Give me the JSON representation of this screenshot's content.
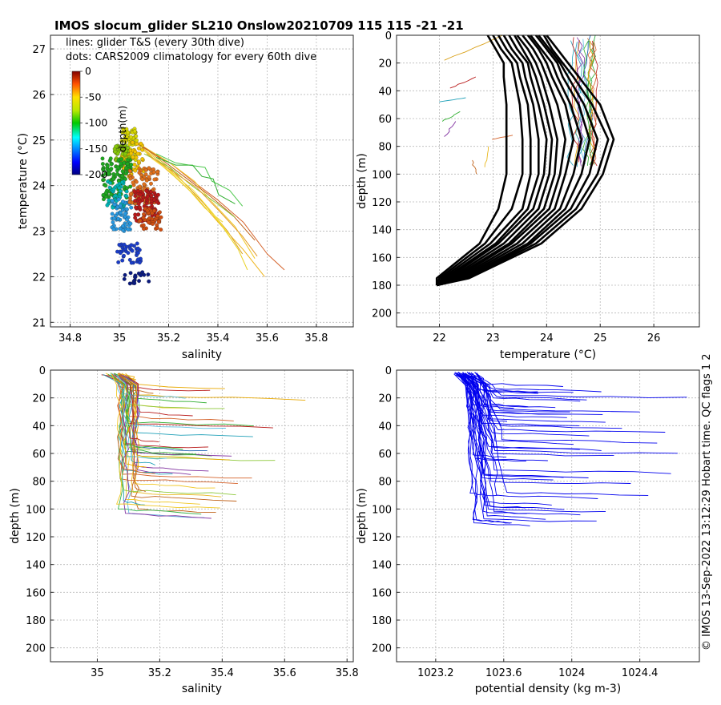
{
  "title": "IMOS slocum_glider SL210 Onslow20210709 115  115  -21  -21",
  "side_text": "© IMOS 13-Sep-2022 13:12:29 Hobart time. QC flags 1  2",
  "chart_data": [
    {
      "id": "ts",
      "type": "scatter",
      "xlabel": "salinity",
      "ylabel": "temperature (°C)",
      "xlim": [
        34.72,
        35.95
      ],
      "ylim": [
        20.9,
        27.3
      ],
      "xticks": [
        "34.8",
        "35",
        "35.2",
        "35.4",
        "35.6",
        "35.8"
      ],
      "yticks": [
        "21",
        "22",
        "23",
        "24",
        "25",
        "26",
        "27"
      ],
      "legend_lines": [
        "lines: glider T&S (every 30th dive)",
        "dots: CARS2009 climatology for every 60th dive"
      ],
      "colorbar": {
        "label": "depth(m)",
        "ticks": [
          "0",
          "-50",
          "-100",
          "-150",
          "-200"
        ],
        "range": [
          -200,
          0
        ]
      },
      "glider_lines": [
        {
          "color": "#d4622a",
          "points": [
            [
              35.06,
              24.95
            ],
            [
              35.12,
              24.78
            ],
            [
              35.2,
              24.5
            ],
            [
              35.3,
              24.1
            ],
            [
              35.4,
              23.7
            ],
            [
              35.5,
              23.2
            ],
            [
              35.6,
              22.5
            ],
            [
              35.67,
              22.15
            ]
          ]
        },
        {
          "color": "#eeb41c",
          "points": [
            [
              35.08,
              24.9
            ],
            [
              35.14,
              24.6
            ],
            [
              35.22,
              24.2
            ],
            [
              35.3,
              23.8
            ],
            [
              35.4,
              23.2
            ],
            [
              35.5,
              22.6
            ],
            [
              35.59,
              22.0
            ]
          ]
        },
        {
          "color": "#e8d020",
          "points": [
            [
              35.1,
              24.8
            ],
            [
              35.18,
              24.45
            ],
            [
              35.26,
              24.05
            ],
            [
              35.34,
              23.65
            ],
            [
              35.42,
              23.1
            ],
            [
              35.48,
              22.6
            ],
            [
              35.52,
              22.15
            ]
          ]
        },
        {
          "color": "#d9a017",
          "points": [
            [
              35.12,
              24.75
            ],
            [
              35.2,
              24.4
            ],
            [
              35.28,
              24.0
            ],
            [
              35.36,
              23.5
            ],
            [
              35.44,
              23.0
            ],
            [
              35.5,
              22.5
            ]
          ]
        },
        {
          "color": "#f0c828",
          "points": [
            [
              35.1,
              24.85
            ],
            [
              35.2,
              24.5
            ],
            [
              35.3,
              24.1
            ],
            [
              35.38,
              23.65
            ],
            [
              35.47,
              23.1
            ],
            [
              35.55,
              22.4
            ]
          ]
        },
        {
          "color": "#c0631a",
          "points": [
            [
              35.07,
              24.95
            ],
            [
              35.16,
              24.6
            ],
            [
              35.26,
              24.2
            ],
            [
              35.36,
              23.8
            ],
            [
              35.46,
              23.35
            ],
            [
              35.55,
              22.8
            ]
          ]
        },
        {
          "color": "#eed83a",
          "points": [
            [
              35.09,
              24.8
            ],
            [
              35.18,
              24.4
            ],
            [
              35.27,
              23.95
            ],
            [
              35.35,
              23.5
            ],
            [
              35.42,
              23.2
            ]
          ]
        },
        {
          "color": "#4cc84c",
          "points": [
            [
              35.15,
              24.7
            ],
            [
              35.23,
              24.5
            ],
            [
              35.28,
              24.45
            ],
            [
              35.35,
              24.4
            ],
            [
              35.38,
              24.1
            ],
            [
              35.45,
              23.9
            ],
            [
              35.5,
              23.55
            ]
          ]
        },
        {
          "color": "#2fae2f",
          "points": [
            [
              35.15,
              24.62
            ],
            [
              35.23,
              24.45
            ],
            [
              35.3,
              24.45
            ],
            [
              35.33,
              24.2
            ],
            [
              35.38,
              24.15
            ],
            [
              35.4,
              23.8
            ],
            [
              35.47,
              23.6
            ]
          ]
        },
        {
          "color": "#8dc83a",
          "points": [
            [
              35.1,
              24.7
            ],
            [
              35.2,
              24.4
            ],
            [
              35.3,
              24.0
            ],
            [
              35.4,
              23.6
            ],
            [
              35.47,
              23.3
            ]
          ]
        },
        {
          "color": "#f7e04a",
          "points": [
            [
              35.13,
              24.6
            ],
            [
              35.22,
              24.25
            ],
            [
              35.3,
              23.9
            ],
            [
              35.38,
              23.4
            ],
            [
              35.45,
              22.9
            ]
          ]
        },
        {
          "color": "#e39b2b",
          "points": [
            [
              35.11,
              24.7
            ],
            [
              35.21,
              24.35
            ],
            [
              35.31,
              23.95
            ],
            [
              35.41,
              23.45
            ],
            [
              35.5,
              22.9
            ],
            [
              35.56,
              22.45
            ]
          ]
        }
      ],
      "climatology_clusters": [
        {
          "color": "#d8d800",
          "s": [
            35.01,
            35.07
          ],
          "t": [
            24.55,
            25.25
          ],
          "n": 60
        },
        {
          "color": "#f2c400",
          "s": [
            35.01,
            35.1
          ],
          "t": [
            24.2,
            24.95
          ],
          "n": 50
        },
        {
          "color": "#88c808",
          "s": [
            34.98,
            35.04
          ],
          "t": [
            24.4,
            24.9
          ],
          "n": 50
        },
        {
          "color": "#1ea81e",
          "s": [
            34.93,
            35.05
          ],
          "t": [
            23.7,
            24.6
          ],
          "n": 110
        },
        {
          "color": "#00b4b4",
          "s": [
            34.95,
            35.03
          ],
          "t": [
            23.5,
            24.1
          ],
          "n": 40
        },
        {
          "color": "#2898e0",
          "s": [
            34.97,
            35.05
          ],
          "t": [
            23.0,
            23.7
          ],
          "n": 60
        },
        {
          "color": "#e0701c",
          "s": [
            35.04,
            35.16
          ],
          "t": [
            23.6,
            24.4
          ],
          "n": 80
        },
        {
          "color": "#b81818",
          "s": [
            35.06,
            35.16
          ],
          "t": [
            23.2,
            23.9
          ],
          "n": 90
        },
        {
          "color": "#d04e10",
          "s": [
            35.08,
            35.17
          ],
          "t": [
            23.0,
            23.5
          ],
          "n": 40
        },
        {
          "color": "#1a3cc8",
          "s": [
            34.99,
            35.09
          ],
          "t": [
            22.3,
            22.75
          ],
          "n": 40
        },
        {
          "color": "#0a1a80",
          "s": [
            35.02,
            35.12
          ],
          "t": [
            21.85,
            22.1
          ],
          "n": 20
        }
      ]
    },
    {
      "id": "temp",
      "type": "line",
      "xlabel": "temperature (°C)",
      "ylabel": "depth (m)",
      "xlim": [
        21.2,
        26.85
      ],
      "ylim": [
        0,
        210
      ],
      "xticks": [
        "22",
        "23",
        "24",
        "25",
        "26"
      ],
      "yticks": [
        "0",
        "20",
        "40",
        "60",
        "80",
        "100",
        "120",
        "140",
        "160",
        "180",
        "200"
      ],
      "climatology_profile_depths": [
        0,
        10,
        20,
        30,
        50,
        75,
        100,
        125,
        150,
        175,
        180
      ],
      "climatology_profiles_T": [
        [
          22.9,
          23.05,
          23.2,
          23.2,
          23.25,
          23.25,
          23.25,
          23.1,
          22.75,
          21.95,
          21.95
        ],
        [
          23.0,
          23.15,
          23.35,
          23.4,
          23.5,
          23.55,
          23.55,
          23.35,
          22.85,
          22.0,
          21.95
        ],
        [
          23.1,
          23.25,
          23.45,
          23.5,
          23.65,
          23.7,
          23.7,
          23.55,
          22.95,
          22.05,
          21.95
        ],
        [
          23.2,
          23.35,
          23.55,
          23.6,
          23.75,
          23.85,
          23.85,
          23.65,
          23.05,
          22.1,
          21.95
        ],
        [
          23.3,
          23.45,
          23.65,
          23.7,
          23.85,
          24.0,
          23.95,
          23.75,
          23.1,
          22.15,
          21.95
        ],
        [
          23.4,
          23.55,
          23.7,
          23.8,
          23.95,
          24.1,
          24.05,
          23.85,
          23.2,
          22.2,
          21.95
        ],
        [
          23.45,
          23.65,
          23.8,
          23.9,
          24.05,
          24.2,
          24.15,
          23.95,
          23.3,
          22.25,
          21.95
        ],
        [
          23.55,
          23.75,
          23.9,
          24.0,
          24.2,
          24.35,
          24.25,
          24.05,
          23.35,
          22.3,
          21.95
        ],
        [
          23.65,
          23.85,
          24.0,
          24.1,
          24.35,
          24.5,
          24.35,
          24.15,
          23.45,
          22.35,
          21.95
        ],
        [
          23.7,
          23.9,
          24.1,
          24.2,
          24.45,
          24.65,
          24.5,
          24.25,
          23.55,
          22.4,
          21.95
        ],
        [
          23.8,
          24.0,
          24.2,
          24.3,
          24.6,
          24.8,
          24.65,
          24.35,
          23.65,
          22.45,
          21.95
        ],
        [
          23.85,
          24.05,
          24.25,
          24.4,
          24.7,
          24.95,
          24.8,
          24.45,
          23.7,
          22.5,
          21.95
        ],
        [
          23.95,
          24.1,
          24.3,
          24.5,
          24.85,
          25.15,
          24.95,
          24.55,
          23.8,
          22.5,
          21.95
        ],
        [
          24.0,
          24.2,
          24.4,
          24.6,
          25.0,
          25.25,
          25.05,
          24.65,
          23.9,
          22.55,
          21.95
        ]
      ],
      "glider_profiles": [
        {
          "color": "#d9a017",
          "points": [
            [
              23.2,
              0
            ],
            [
              22.1,
              18
            ]
          ]
        },
        {
          "color": "#b81818",
          "points": [
            [
              22.7,
              30
            ],
            [
              22.2,
              38
            ]
          ]
        },
        {
          "color": "#1fa0b8",
          "points": [
            [
              22.5,
              45
            ],
            [
              22.0,
              48
            ]
          ]
        },
        {
          "color": "#2fae2f",
          "points": [
            [
              22.4,
              55
            ],
            [
              22.05,
              62
            ]
          ]
        },
        {
          "color": "#8030a0",
          "points": [
            [
              22.3,
              62
            ],
            [
              22.1,
              73
            ]
          ]
        },
        {
          "color": "#c0631a",
          "points": [
            [
              22.6,
              90
            ],
            [
              22.7,
              100
            ]
          ]
        },
        {
          "color": "#e8b820",
          "points": [
            [
              22.9,
              80
            ],
            [
              22.85,
              95
            ]
          ]
        },
        {
          "color": "#d4622a",
          "points": [
            [
              23.0,
              75
            ],
            [
              23.35,
              72
            ]
          ]
        },
        {
          "color": "#1e60b0",
          "points": [
            [
              24.8,
              0
            ],
            [
              24.7,
              30
            ],
            [
              24.85,
              60
            ],
            [
              24.7,
              90
            ]
          ]
        },
        {
          "color": "#33b24a",
          "points": [
            [
              24.9,
              0
            ],
            [
              24.75,
              40
            ],
            [
              24.9,
              70
            ]
          ]
        }
      ]
    },
    {
      "id": "sal",
      "type": "line",
      "xlabel": "salinity",
      "ylabel": "depth (m)",
      "xlim": [
        34.85,
        35.82
      ],
      "ylim": [
        0,
        210
      ],
      "xticks": [
        "35",
        "35.2",
        "35.4",
        "35.6",
        "35.8"
      ],
      "yticks": [
        "0",
        "20",
        "40",
        "60",
        "80",
        "100",
        "120",
        "140",
        "160",
        "180",
        "200"
      ],
      "surface_salinity": 35.1,
      "profile_series": [
        {
          "color": "#e8a800",
          "s_end": 35.67,
          "d_end": 18
        },
        {
          "color": "#b81818",
          "s_end": 35.56,
          "d_end": 38
        },
        {
          "color": "#2fae2f",
          "s_end": 35.5,
          "d_end": 37
        },
        {
          "color": "#1fa0b8",
          "s_end": 35.5,
          "d_end": 45
        },
        {
          "color": "#8dc83a",
          "s_end": 35.57,
          "d_end": 62
        },
        {
          "color": "#d4622a",
          "s_end": 35.5,
          "d_end": 75
        },
        {
          "color": "#e8b820",
          "s_end": 35.4,
          "d_end": 88
        },
        {
          "color": "#c0631a",
          "s_end": 35.38,
          "d_end": 100
        },
        {
          "color": "#8030a0",
          "s_end": 35.3,
          "d_end": 72
        },
        {
          "color": "#1e60b0",
          "s_end": 35.35,
          "d_end": 55
        },
        {
          "color": "#33b24a",
          "s_end": 35.33,
          "d_end": 100
        },
        {
          "color": "#5dbde0",
          "s_end": 35.34,
          "d_end": 103
        },
        {
          "color": "#f0c828",
          "s_end": 35.3,
          "d_end": 25
        },
        {
          "color": "#b81818",
          "s_end": 35.36,
          "d_end": 12
        },
        {
          "color": "#2fae2f",
          "s_end": 35.35,
          "d_end": 20
        }
      ]
    },
    {
      "id": "dens",
      "type": "line",
      "xlabel": "potential density (kg m-3)",
      "ylabel": "depth (m)",
      "xlim": [
        1022.97,
        1024.75
      ],
      "ylim": [
        0,
        210
      ],
      "xticks": [
        "1023.2",
        "1023.6",
        "1024",
        "1024.4"
      ],
      "yticks": [
        "0",
        "20",
        "40",
        "60",
        "80",
        "100",
        "120",
        "140",
        "160",
        "180",
        "200"
      ],
      "line_color": "#0000ee",
      "surface_density": 1023.4,
      "profile_ends": [
        [
          1024.68,
          18
        ],
        [
          1024.4,
          28
        ],
        [
          1024.2,
          35
        ],
        [
          1024.55,
          43
        ],
        [
          1024.62,
          58
        ],
        [
          1024.58,
          72
        ],
        [
          1024.45,
          88
        ],
        [
          1024.2,
          100
        ],
        [
          1024.05,
          102
        ],
        [
          1023.95,
          98
        ],
        [
          1023.85,
          105
        ],
        [
          1023.75,
          110
        ],
        [
          1023.65,
          108
        ],
        [
          1024.3,
          40
        ],
        [
          1024.1,
          45
        ],
        [
          1024.0,
          30
        ],
        [
          1023.9,
          25
        ],
        [
          1024.25,
          60
        ],
        [
          1024.35,
          80
        ],
        [
          1024.15,
          90
        ],
        [
          1023.95,
          75
        ],
        [
          1024.05,
          55
        ],
        [
          1023.8,
          15
        ],
        [
          1024.5,
          50
        ]
      ]
    }
  ]
}
